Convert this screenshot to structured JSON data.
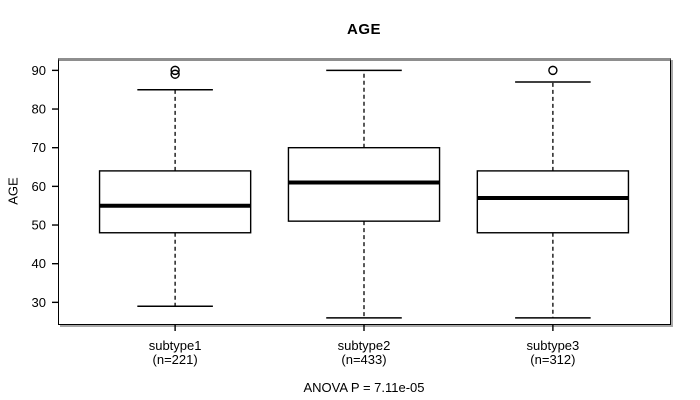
{
  "title": "AGE",
  "y_axis_label": "AGE",
  "footer_note": "ANOVA P = 7.11e-05",
  "colors": {
    "foreground": "#000000",
    "background": "#ffffff",
    "frame_top_edge": "#8e8e8e",
    "frame_shadow": "#a8a8a8"
  },
  "chart_data": {
    "type": "boxplot",
    "title": "AGE",
    "xlabel": "",
    "ylabel": "AGE",
    "annotation": "ANOVA P = 7.11e-05",
    "grid": false,
    "legend": "none",
    "yticks": [
      30,
      40,
      50,
      60,
      70,
      80,
      90
    ],
    "ylim": [
      24.4,
      93.2
    ],
    "categories": [
      "subtype1",
      "subtype2",
      "subtype3"
    ],
    "category_sublabels": [
      "(n=221)",
      "(n=433)",
      "(n=312)"
    ],
    "series": [
      {
        "name": "subtype1",
        "n": 221,
        "whisker_low": 29,
        "q1": 48,
        "median": 55,
        "q3": 64,
        "whisker_high": 85,
        "outliers": [
          89,
          90
        ]
      },
      {
        "name": "subtype2",
        "n": 433,
        "whisker_low": 26,
        "q1": 51,
        "median": 61,
        "q3": 70,
        "whisker_high": 90,
        "outliers": []
      },
      {
        "name": "subtype3",
        "n": 312,
        "whisker_low": 26,
        "q1": 48,
        "median": 57,
        "q3": 64,
        "whisker_high": 87,
        "outliers": [
          90
        ]
      }
    ]
  }
}
